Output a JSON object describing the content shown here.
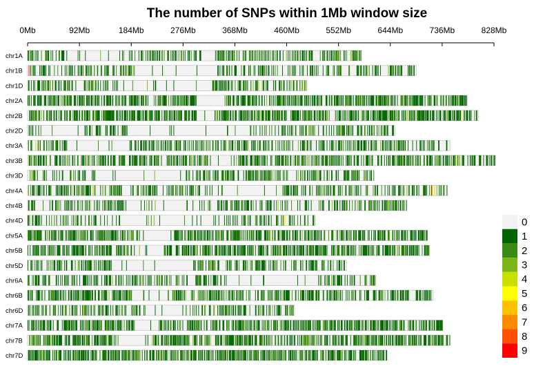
{
  "chart_data": {
    "type": "heatmap",
    "title": "The number of SNPs within 1Mb window size",
    "x_ticks": [
      "0Mb",
      "92Mb",
      "184Mb",
      "276Mb",
      "368Mb",
      "460Mb",
      "552Mb",
      "644Mb",
      "736Mb",
      "828Mb"
    ],
    "x_tick_values": [
      0,
      92,
      184,
      276,
      368,
      460,
      552,
      644,
      736,
      828
    ],
    "xlim": [
      0,
      828
    ],
    "window_size_mb": 1,
    "legend": {
      "placement": "right",
      "levels": [
        {
          "value": 0,
          "label": "0",
          "color": "#f2f2f2"
        },
        {
          "value": 1,
          "label": "1",
          "color": "#006400"
        },
        {
          "value": 2,
          "label": "2",
          "color": "#3a8c12"
        },
        {
          "value": 3,
          "label": "3",
          "color": "#7cb518"
        },
        {
          "value": 4,
          "label": "4",
          "color": "#c8e000"
        },
        {
          "value": 5,
          "label": "5",
          "color": "#ffff00"
        },
        {
          "value": 6,
          "label": "6",
          "color": "#ffc000"
        },
        {
          "value": 7,
          "label": "7",
          "color": "#ff8c00"
        },
        {
          "value": 8,
          "label": "8",
          "color": "#ff5000"
        },
        {
          "value": 9,
          "label": "9",
          "color": "#ff0000"
        }
      ]
    },
    "chromosomes": [
      {
        "name": "chr1A",
        "length": 593,
        "density": 0.4,
        "gaps": [
          [
            71,
            180
          ],
          [
            310,
            333
          ]
        ],
        "hot": [
          [
            1,
            2
          ],
          [
            6,
            2
          ],
          [
            550,
            4
          ],
          [
            575,
            3
          ]
        ]
      },
      {
        "name": "chr1B",
        "length": 690,
        "density": 0.32,
        "gaps": [
          [
            190,
            340
          ]
        ],
        "hot": [
          [
            2,
            9
          ],
          [
            8,
            2
          ],
          [
            640,
            3
          ]
        ]
      },
      {
        "name": "chr1D",
        "length": 496,
        "density": 0.4,
        "gaps": [
          [
            160,
            325
          ]
        ],
        "hot": [
          [
            400,
            3
          ],
          [
            410,
            4
          ],
          [
            488,
            4
          ],
          [
            492,
            3
          ]
        ]
      },
      {
        "name": "chr2A",
        "length": 780,
        "density": 0.55,
        "gaps": [
          [
            300,
            350
          ]
        ],
        "hot": [
          [
            100,
            2
          ],
          [
            400,
            2
          ]
        ]
      },
      {
        "name": "chr2B",
        "length": 800,
        "density": 0.58,
        "gaps": [
          [
            300,
            330
          ]
        ],
        "hot": [
          [
            20,
            3
          ],
          [
            60,
            2
          ],
          [
            770,
            4
          ]
        ]
      },
      {
        "name": "chr2D",
        "length": 652,
        "density": 0.36,
        "gaps": [
          [
            25,
            105
          ],
          [
            180,
            395
          ]
        ],
        "hot": [
          [
            570,
            2
          ],
          [
            590,
            2
          ]
        ]
      },
      {
        "name": "chr3A",
        "length": 750,
        "density": 0.42,
        "gaps": [
          [
            70,
            178
          ]
        ],
        "hot": [
          [
            14,
            4
          ],
          [
            20,
            3
          ],
          [
            560,
            2
          ]
        ]
      },
      {
        "name": "chr3B",
        "length": 830,
        "density": 0.48,
        "gaps": [
          [
            320,
            360
          ]
        ],
        "hot": [
          [
            250,
            3
          ],
          [
            760,
            4
          ],
          [
            765,
            3
          ]
        ]
      },
      {
        "name": "chr3D",
        "length": 615,
        "density": 0.4,
        "gaps": [
          [
            120,
            280
          ]
        ],
        "hot": [
          [
            10,
            2
          ]
        ]
      },
      {
        "name": "chr4A",
        "length": 745,
        "density": 0.38,
        "gaps": [
          [
            320,
            440
          ]
        ],
        "hot": [
          [
            115,
            4
          ],
          [
            120,
            3
          ],
          [
            570,
            2
          ],
          [
            716,
            7
          ],
          [
            718,
            6
          ],
          [
            722,
            4
          ],
          [
            726,
            3
          ]
        ]
      },
      {
        "name": "chr4B",
        "length": 673,
        "density": 0.4,
        "gaps": [
          [
            175,
            320
          ]
        ],
        "hot": [
          [
            640,
            4
          ],
          [
            650,
            3
          ]
        ]
      },
      {
        "name": "chr4D",
        "length": 510,
        "density": 0.28,
        "gaps": [
          [
            165,
            330
          ]
        ],
        "hot": [
          [
            455,
            6
          ],
          [
            457,
            5
          ]
        ]
      },
      {
        "name": "chr5A",
        "length": 710,
        "density": 0.55,
        "gaps": [
          [
            200,
            260
          ]
        ],
        "hot": [
          [
            60,
            2
          ],
          [
            400,
            2
          ]
        ]
      },
      {
        "name": "chr5B",
        "length": 713,
        "density": 0.52,
        "gaps": [
          [
            180,
            240
          ]
        ],
        "hot": [
          [
            280,
            3
          ],
          [
            400,
            2
          ]
        ]
      },
      {
        "name": "chr5D",
        "length": 566,
        "density": 0.38,
        "gaps": [
          [
            150,
            290
          ]
        ],
        "hot": [
          [
            40,
            2
          ]
        ]
      },
      {
        "name": "chr6A",
        "length": 618,
        "density": 0.4,
        "gaps": [
          [
            345,
            515
          ]
        ],
        "hot": [
          [
            10,
            2
          ],
          [
            590,
            2
          ]
        ]
      },
      {
        "name": "chr6B",
        "length": 720,
        "density": 0.48,
        "gaps": [
          [
            185,
            255
          ]
        ],
        "hot": [
          [
            100,
            2
          ],
          [
            420,
            2
          ]
        ]
      },
      {
        "name": "chr6D",
        "length": 474,
        "density": 0.4,
        "gaps": [
          [
            200,
            290
          ]
        ],
        "hot": [
          [
            20,
            2
          ]
        ]
      },
      {
        "name": "chr7A",
        "length": 737,
        "density": 0.55,
        "gaps": [
          [
            190,
            230
          ]
        ],
        "hot": [
          [
            10,
            2
          ],
          [
            500,
            2
          ]
        ]
      },
      {
        "name": "chr7B",
        "length": 750,
        "density": 0.55,
        "gaps": [
          [
            150,
            220
          ]
        ],
        "hot": [
          [
            455,
            3
          ]
        ]
      },
      {
        "name": "chr7D",
        "length": 638,
        "density": 0.55,
        "gaps": [],
        "hot": [
          [
            20,
            2
          ]
        ]
      }
    ]
  }
}
